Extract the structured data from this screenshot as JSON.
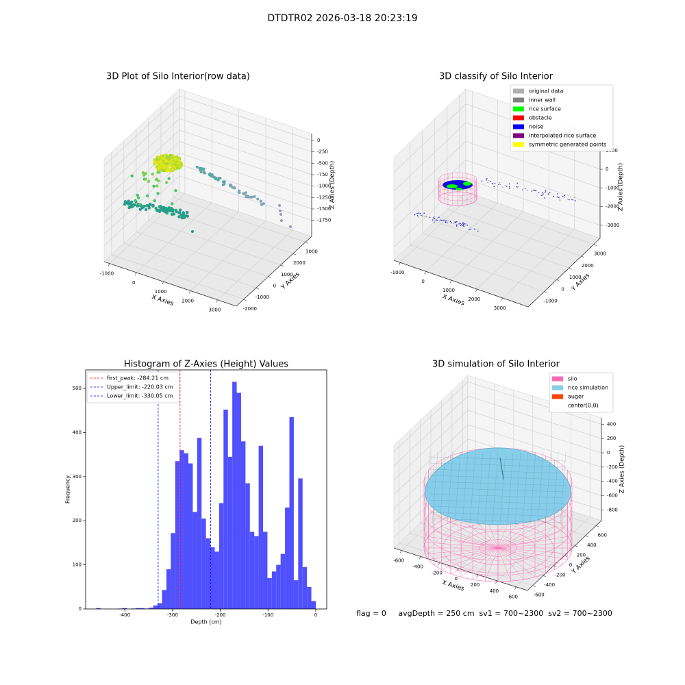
{
  "title": "DTDTR02 2026-03-18 20:23:19",
  "chart_data": [
    {
      "type": "scatter3d",
      "title": "3D Plot of Silo Interior(row data)",
      "xlabel": "X Axies",
      "ylabel": "Y Axies",
      "zlabel": "Z Axies (Depth)",
      "xlim": [
        -1200,
        3700
      ],
      "ylim": [
        -2600,
        3500
      ],
      "zlim": [
        -2100,
        150
      ],
      "xticks": [
        -1000,
        0,
        1000,
        2000,
        3000
      ],
      "yticks": [
        -2000,
        -1000,
        0,
        1000,
        2000,
        3000
      ],
      "zticks": [
        0,
        -250,
        -500,
        -750,
        -1000,
        -1250,
        -1500,
        -1750
      ]
    },
    {
      "type": "scatter3d",
      "title": "3D classify of Silo Interior",
      "xlabel": "X Axies",
      "ylabel": "Y Axies",
      "zlabel": "Z Axies (Depth)",
      "xlim": [
        -1250,
        4000
      ],
      "ylim": [
        -2300,
        3500
      ],
      "zlim": [
        -3700,
        1800
      ],
      "xticks": [
        -1000,
        0,
        1000,
        2000,
        3000
      ],
      "yticks": [
        -1000,
        0,
        1000,
        2000,
        3000
      ],
      "zticks": [
        1000,
        0,
        -1000,
        -2000,
        -3000
      ],
      "legend": [
        {
          "name": "original data",
          "color": "#b0b0b0"
        },
        {
          "name": "inner wall",
          "color": "#808080"
        },
        {
          "name": "rice surface",
          "color": "#00ff00"
        },
        {
          "name": "obstacle",
          "color": "#ff0000"
        },
        {
          "name": "noise",
          "color": "#0000ff"
        },
        {
          "name": "interpolated rice surface",
          "color": "#800080"
        },
        {
          "name": "symmetric generated points",
          "color": "#ffff00"
        }
      ]
    },
    {
      "type": "histogram",
      "title": "Histogram of Z-Axies (Height) Values",
      "xlabel": "Depth (cm)",
      "ylabel": "Frequency",
      "color": "#5050ff",
      "xlim": [
        -482,
        23
      ],
      "ylim": [
        0,
        542
      ],
      "xticks": [
        -400,
        -300,
        -200,
        -100,
        0
      ],
      "yticks": [
        0,
        100,
        200,
        300,
        400,
        500
      ],
      "bins": [
        -460,
        -450.8,
        -441.6,
        -432.4,
        -423.2,
        -414,
        -404.8,
        -395.6,
        -386.4,
        -377.2,
        -368,
        -358.8,
        -349.6,
        -340.4,
        -331.2,
        -322,
        -312.8,
        -303.6,
        -294.4,
        -285.2,
        -276,
        -266.8,
        -257.6,
        -248.4,
        -239.2,
        -230,
        -220.8,
        -211.6,
        -202.4,
        -193.2,
        -184,
        -174.8,
        -165.6,
        -156.4,
        -147.2,
        -138,
        -128.8,
        -119.6,
        -110.4,
        -101.2,
        -92,
        -82.8,
        -73.6,
        -64.4,
        -55.2,
        -46,
        -36.8,
        -27.6,
        -18.4,
        -9.2,
        0
      ],
      "counts": [
        2,
        0,
        0,
        0,
        0,
        1,
        2,
        0,
        1,
        2,
        2,
        1,
        3,
        8,
        13,
        43,
        90,
        172,
        335,
        360,
        353,
        330,
        220,
        388,
        205,
        160,
        140,
        130,
        240,
        452,
        345,
        515,
        490,
        380,
        285,
        175,
        165,
        370,
        175,
        70,
        85,
        100,
        125,
        230,
        435,
        65,
        296,
        95,
        50,
        18
      ],
      "lines": [
        {
          "name": "first_peak: -284.21 cm",
          "value": -284.21,
          "color": "#ff0000"
        },
        {
          "name": "Upper_limit: -220.03 cm",
          "value": -220.03,
          "color": "#0000ff"
        },
        {
          "name": "Lower_limit: -330.05 cm",
          "value": -330.05,
          "color": "#0000ff"
        }
      ]
    },
    {
      "type": "surface3d",
      "title": "3D simulation of Silo Interior",
      "xlabel": "X Axies",
      "ylabel": "Y Axies",
      "zlabel": "Z Axies (Depth)",
      "xlim": [
        -680,
        720
      ],
      "ylim": [
        -700,
        700
      ],
      "zlim": [
        -950,
        490
      ],
      "xticks": [
        -600,
        -400,
        -200,
        0,
        200,
        400,
        600
      ],
      "yticks": [
        -600,
        -400,
        -200,
        0,
        200,
        400,
        600
      ],
      "zticks": [
        400,
        200,
        0,
        -200,
        -400,
        -600,
        -800
      ],
      "legend": [
        {
          "name": "silo",
          "color": "#ff69b4"
        },
        {
          "name": "rice simulation",
          "color": "#87ceeb"
        },
        {
          "name": "auger",
          "color": "#ff4500"
        },
        {
          "name": "center(0,0)",
          "color": "#ffffff"
        }
      ],
      "annotation": "flag = 0     avgDepth = 250 cm  sv1 = 700~2300  sv2 = 700~2300"
    }
  ]
}
